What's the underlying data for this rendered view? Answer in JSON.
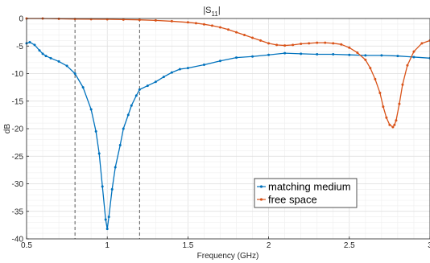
{
  "chart_data": {
    "type": "line",
    "title_main": "|S",
    "title_sub": "11",
    "title_end": "|",
    "xlabel": "Frequency (GHz)",
    "ylabel": "dB",
    "xlim": [
      0.5,
      3
    ],
    "ylim": [
      -40,
      0
    ],
    "xticks": [
      "0.5",
      "1",
      "1.5",
      "2",
      "2.5",
      "3"
    ],
    "yticks": [
      "0",
      "-5",
      "-10",
      "-15",
      "-20",
      "-25",
      "-30",
      "-35",
      "-40"
    ],
    "grid": true,
    "legend_position": "lower-right",
    "vertical_markers": [
      0.8,
      1.2
    ],
    "series": [
      {
        "name": "matching medium",
        "color": "#0072BD",
        "x": [
          0.5,
          0.52,
          0.55,
          0.58,
          0.6,
          0.62,
          0.65,
          0.7,
          0.75,
          0.8,
          0.85,
          0.9,
          0.93,
          0.95,
          0.97,
          0.99,
          1.0,
          1.01,
          1.03,
          1.05,
          1.08,
          1.1,
          1.13,
          1.15,
          1.18,
          1.2,
          1.25,
          1.3,
          1.35,
          1.4,
          1.45,
          1.5,
          1.6,
          1.7,
          1.8,
          1.9,
          2.0,
          2.1,
          2.2,
          2.3,
          2.4,
          2.5,
          2.6,
          2.7,
          2.8,
          2.9,
          3.0
        ],
        "y": [
          -4.5,
          -4.3,
          -4.8,
          -5.8,
          -6.4,
          -6.8,
          -7.2,
          -7.8,
          -8.6,
          -10.0,
          -12.5,
          -16.5,
          -20.5,
          -24.5,
          -30.5,
          -36.5,
          -38.2,
          -36.0,
          -31.0,
          -27.0,
          -23.0,
          -20.0,
          -17.5,
          -15.8,
          -14.0,
          -12.9,
          -12.2,
          -11.5,
          -10.6,
          -9.8,
          -9.2,
          -9.0,
          -8.4,
          -7.7,
          -7.1,
          -6.9,
          -6.6,
          -6.3,
          -6.4,
          -6.5,
          -6.5,
          -6.6,
          -6.7,
          -6.7,
          -6.8,
          -7.0,
          -7.2
        ]
      },
      {
        "name": "free space",
        "color": "#D95319",
        "x": [
          0.5,
          0.6,
          0.7,
          0.8,
          0.9,
          1.0,
          1.1,
          1.2,
          1.3,
          1.4,
          1.5,
          1.55,
          1.6,
          1.65,
          1.7,
          1.75,
          1.8,
          1.85,
          1.9,
          1.95,
          2.0,
          2.05,
          2.1,
          2.15,
          2.2,
          2.25,
          2.3,
          2.35,
          2.4,
          2.45,
          2.5,
          2.55,
          2.6,
          2.63,
          2.66,
          2.69,
          2.71,
          2.73,
          2.75,
          2.77,
          2.78,
          2.79,
          2.81,
          2.83,
          2.86,
          2.9,
          2.95,
          3.0
        ],
        "y": [
          0.0,
          0.0,
          -0.05,
          -0.1,
          -0.12,
          -0.15,
          -0.2,
          -0.25,
          -0.35,
          -0.5,
          -0.7,
          -0.85,
          -1.05,
          -1.3,
          -1.6,
          -2.0,
          -2.5,
          -3.0,
          -3.5,
          -4.0,
          -4.5,
          -4.8,
          -4.9,
          -4.8,
          -4.6,
          -4.5,
          -4.4,
          -4.4,
          -4.5,
          -4.7,
          -5.3,
          -6.2,
          -7.5,
          -9.0,
          -11.0,
          -13.5,
          -16.0,
          -18.0,
          -19.3,
          -19.7,
          -19.3,
          -18.5,
          -15.5,
          -12.0,
          -8.5,
          -6.0,
          -4.5,
          -4.0
        ]
      }
    ]
  }
}
